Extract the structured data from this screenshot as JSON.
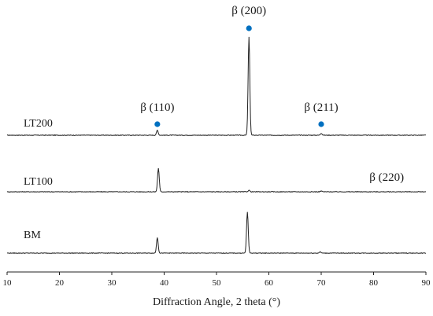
{
  "chart_data": {
    "type": "line",
    "title": "",
    "xlabel": "Diffraction Angle, 2 theta (°)",
    "ylabel": "",
    "xlim": [
      10,
      90
    ],
    "x_ticks": [
      10,
      20,
      30,
      40,
      50,
      60,
      70,
      80,
      90
    ],
    "grid": false,
    "legend": "none",
    "marker_color": "#0070c0",
    "line_color": "#222222",
    "series": [
      {
        "name": "LT200",
        "peaks": [
          {
            "x": 38.7,
            "height": 0.05
          },
          {
            "x": 56.2,
            "height": 1.0
          },
          {
            "x": 70.0,
            "height": 0.02
          }
        ]
      },
      {
        "name": "LT100",
        "peaks": [
          {
            "x": 38.9,
            "height": 0.24
          },
          {
            "x": 56.2,
            "height": 0.015
          },
          {
            "x": 70.0,
            "height": 0.008
          }
        ]
      },
      {
        "name": "BM",
        "peaks": [
          {
            "x": 38.7,
            "height": 0.16
          },
          {
            "x": 55.9,
            "height": 0.42
          },
          {
            "x": 69.8,
            "height": 0.012
          }
        ]
      }
    ],
    "peak_markers": [
      {
        "x": 38.7,
        "series": "LT200"
      },
      {
        "x": 56.2,
        "series": "LT200"
      },
      {
        "x": 70.0,
        "series": "LT200"
      }
    ],
    "annotations": [
      {
        "text": "β (110)",
        "x": 38.7
      },
      {
        "text": "β (200)",
        "x": 56.2
      },
      {
        "text": "β (211)",
        "x": 70.0
      },
      {
        "text": "β (220)",
        "x": 82.5
      }
    ]
  }
}
